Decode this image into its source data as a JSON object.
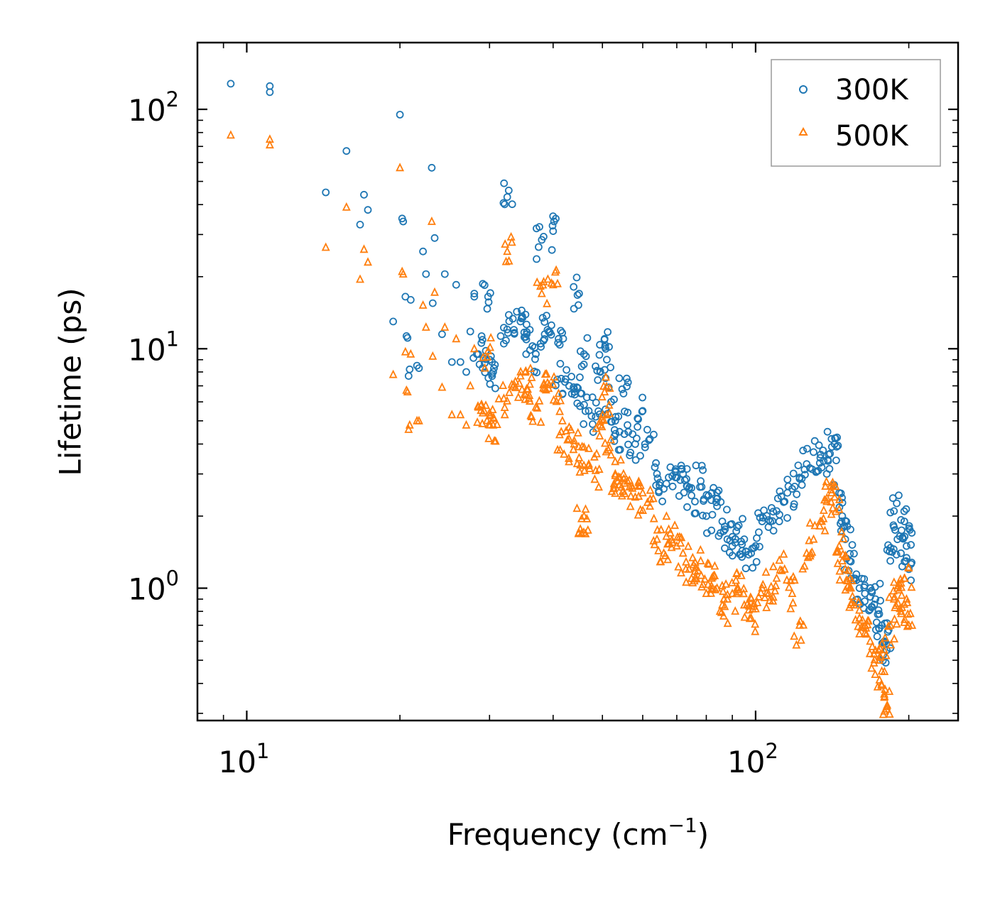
{
  "chart_data": {
    "type": "scatter",
    "title": "",
    "xlabel": "Frequency (cm",
    "xlabel_sup": "−1",
    "xlabel_close": ")",
    "ylabel": "Lifetime (ps)",
    "xscale": "log",
    "yscale": "log",
    "xlim": [
      8.0,
      250.0
    ],
    "ylim": [
      0.28,
      190.0
    ],
    "x_ticks": [
      {
        "value": 10,
        "base": "10",
        "exp": "1"
      },
      {
        "value": 100,
        "base": "10",
        "exp": "2"
      }
    ],
    "y_ticks": [
      {
        "value": 1,
        "base": "10",
        "exp": "0"
      },
      {
        "value": 10,
        "base": "10",
        "exp": "1"
      },
      {
        "value": 100,
        "base": "10",
        "exp": "2"
      }
    ],
    "legend_position": "top-right",
    "series": [
      {
        "name": "300K",
        "color": "#1f77b4",
        "marker": "circle",
        "points": [
          [
            9.3,
            128
          ],
          [
            11.1,
            125
          ],
          [
            11.1,
            118
          ],
          [
            14.3,
            45
          ],
          [
            15.7,
            67
          ],
          [
            16.7,
            33
          ],
          [
            17.0,
            44
          ],
          [
            17.3,
            38
          ],
          [
            19.4,
            13
          ],
          [
            20.0,
            95
          ],
          [
            20.2,
            35
          ],
          [
            20.3,
            34
          ],
          [
            20.5,
            16.5
          ],
          [
            20.6,
            11.3
          ],
          [
            20.7,
            11.1
          ],
          [
            20.8,
            7.7
          ],
          [
            20.9,
            8.2
          ],
          [
            21.0,
            16
          ],
          [
            21.6,
            8.5
          ],
          [
            21.8,
            8.3
          ],
          [
            22.2,
            25.5
          ],
          [
            22.5,
            20.5
          ],
          [
            23.1,
            57
          ],
          [
            23.2,
            15.5
          ],
          [
            23.4,
            29
          ],
          [
            24.2,
            11.5
          ],
          [
            24.5,
            20.5
          ],
          [
            25.3,
            8.8
          ],
          [
            25.8,
            18.5
          ],
          [
            26.3,
            8.8
          ],
          [
            27.0,
            8.0
          ],
          [
            27.5,
            11.8
          ],
          [
            28.0,
            17
          ],
          [
            28.0,
            16.5
          ],
          [
            28.5,
            9.5
          ],
          [
            29.5,
            9.8
          ],
          [
            29.8,
            16.5
          ],
          [
            30.0,
            9.0
          ],
          [
            30.5,
            8.0
          ],
          [
            32.0,
            10.5
          ],
          [
            32.5,
            43
          ],
          [
            33.5,
            12
          ],
          [
            34.5,
            13
          ],
          [
            35.5,
            11.5
          ],
          [
            36.0,
            12
          ],
          [
            37.0,
            9.5
          ],
          [
            38.0,
            28.5
          ],
          [
            38.5,
            11.5
          ],
          [
            39.0,
            12
          ],
          [
            40.0,
            31
          ],
          [
            41.0,
            11
          ],
          [
            41.5,
            7.5
          ],
          [
            43.0,
            7.0
          ],
          [
            44.0,
            6.8
          ],
          [
            45.0,
            17
          ],
          [
            45.5,
            6.5
          ],
          [
            46.0,
            9.5
          ],
          [
            47.0,
            5.5
          ],
          [
            48.5,
            5.2
          ],
          [
            49.5,
            8.0
          ],
          [
            50.5,
            11
          ],
          [
            51.0,
            9
          ],
          [
            52.0,
            6.0
          ],
          [
            53.0,
            5.0
          ],
          [
            54.0,
            4.5
          ],
          [
            55.0,
            6.5
          ],
          [
            56.0,
            4.8
          ],
          [
            58.0,
            4.0
          ],
          [
            60.0,
            5.5
          ],
          [
            62.0,
            4.2
          ],
          [
            64.0,
            3.0
          ],
          [
            66.0,
            2.6
          ],
          [
            68.0,
            3.2
          ],
          [
            70.0,
            2.9
          ],
          [
            72.0,
            3.0
          ],
          [
            74.0,
            2.6
          ],
          [
            76.0,
            2.3
          ],
          [
            78.0,
            2.8
          ],
          [
            80.0,
            2.0
          ],
          [
            82.0,
            2.5
          ],
          [
            84.0,
            2.2
          ],
          [
            86.0,
            1.9
          ],
          [
            88.0,
            1.6
          ],
          [
            90.0,
            1.5
          ],
          [
            92.0,
            1.8
          ],
          [
            95.0,
            1.6
          ],
          [
            98.0,
            1.4
          ],
          [
            100.0,
            1.5
          ],
          [
            103.0,
            1.9
          ],
          [
            106.0,
            1.8
          ],
          [
            110.0,
            2.1
          ],
          [
            114.0,
            2.3
          ],
          [
            118.0,
            2.6
          ],
          [
            122.0,
            2.9
          ],
          [
            126.0,
            3.3
          ],
          [
            130.0,
            3.7
          ],
          [
            134.0,
            3.5
          ],
          [
            138.0,
            3.0
          ],
          [
            141.0,
            4.2
          ],
          [
            143.0,
            4.0
          ],
          [
            146.0,
            2.5
          ],
          [
            148.0,
            2.0
          ],
          [
            150.0,
            1.6
          ],
          [
            153.0,
            1.3
          ],
          [
            156.0,
            1.1
          ],
          [
            160.0,
            1.0
          ],
          [
            164.0,
            0.95
          ],
          [
            168.0,
            0.92
          ],
          [
            172.0,
            0.9
          ],
          [
            175.0,
            0.78
          ],
          [
            177.0,
            0.7
          ],
          [
            179.0,
            0.6
          ],
          [
            181.0,
            0.55
          ],
          [
            184.0,
            1.3
          ],
          [
            187.0,
            2.1
          ],
          [
            190.0,
            1.6
          ],
          [
            193.0,
            1.4
          ],
          [
            196.0,
            1.9
          ],
          [
            198.0,
            1.5
          ],
          [
            200.0,
            1.2
          ]
        ]
      },
      {
        "name": "500K",
        "color": "#ff7f0e",
        "marker": "triangle",
        "points": [
          [
            9.3,
            78
          ],
          [
            11.1,
            75
          ],
          [
            11.1,
            71
          ],
          [
            14.3,
            26.5
          ],
          [
            15.7,
            39
          ],
          [
            16.7,
            19.5
          ],
          [
            17.0,
            26
          ],
          [
            17.3,
            23
          ],
          [
            19.4,
            7.8
          ],
          [
            20.0,
            57
          ],
          [
            20.2,
            21
          ],
          [
            20.3,
            20.5
          ],
          [
            20.5,
            9.7
          ],
          [
            20.6,
            6.7
          ],
          [
            20.7,
            6.6
          ],
          [
            20.8,
            4.6
          ],
          [
            20.9,
            4.8
          ],
          [
            21.0,
            9.5
          ],
          [
            21.6,
            5.0
          ],
          [
            21.8,
            5.0
          ],
          [
            22.2,
            15.2
          ],
          [
            22.5,
            12.3
          ],
          [
            23.1,
            34
          ],
          [
            23.2,
            9.3
          ],
          [
            23.4,
            17.2
          ],
          [
            24.2,
            6.9
          ],
          [
            24.5,
            12.3
          ],
          [
            25.3,
            5.3
          ],
          [
            25.8,
            11
          ],
          [
            26.3,
            5.3
          ],
          [
            27.0,
            4.8
          ],
          [
            27.5,
            7.0
          ],
          [
            28.0,
            10
          ],
          [
            28.5,
            5.7
          ],
          [
            29.5,
            5.8
          ],
          [
            29.8,
            9.8
          ],
          [
            30.0,
            5.4
          ],
          [
            30.5,
            4.8
          ],
          [
            32.0,
            6.2
          ],
          [
            32.5,
            25.5
          ],
          [
            33.5,
            7.1
          ],
          [
            34.5,
            7.7
          ],
          [
            35.5,
            6.8
          ],
          [
            36.0,
            7.1
          ],
          [
            37.0,
            5.7
          ],
          [
            38.0,
            17
          ],
          [
            38.5,
            6.8
          ],
          [
            39.0,
            7.2
          ],
          [
            40.0,
            18.5
          ],
          [
            41.0,
            6.5
          ],
          [
            41.5,
            4.5
          ],
          [
            43.0,
            4.2
          ],
          [
            44.0,
            4.0
          ],
          [
            45.0,
            3.5
          ],
          [
            45.5,
            1.95
          ],
          [
            46.0,
            2.0
          ],
          [
            47.0,
            3.3
          ],
          [
            48.5,
            3.1
          ],
          [
            49.5,
            4.8
          ],
          [
            50.5,
            6.6
          ],
          [
            51.0,
            5.3
          ],
          [
            52.0,
            3.6
          ],
          [
            53.0,
            3.0
          ],
          [
            54.0,
            2.7
          ],
          [
            55.0,
            3.0
          ],
          [
            56.0,
            2.8
          ],
          [
            58.0,
            2.4
          ],
          [
            60.0,
            2.5
          ],
          [
            62.0,
            2.2
          ],
          [
            64.0,
            1.6
          ],
          [
            66.0,
            1.4
          ],
          [
            68.0,
            1.7
          ],
          [
            70.0,
            1.5
          ],
          [
            72.0,
            1.4
          ],
          [
            74.0,
            1.2
          ],
          [
            76.0,
            1.1
          ],
          [
            78.0,
            1.3
          ],
          [
            80.0,
            0.95
          ],
          [
            82.0,
            1.1
          ],
          [
            84.0,
            1.0
          ],
          [
            86.0,
            0.85
          ],
          [
            88.0,
            0.9
          ],
          [
            90.0,
            0.95
          ],
          [
            92.0,
            1.0
          ],
          [
            95.0,
            0.85
          ],
          [
            98.0,
            0.75
          ],
          [
            100.0,
            0.82
          ],
          [
            103.0,
            1.0
          ],
          [
            106.0,
            0.95
          ],
          [
            110.0,
            1.1
          ],
          [
            114.0,
            1.2
          ],
          [
            118.0,
            0.95
          ],
          [
            122.0,
            0.7
          ],
          [
            126.0,
            1.4
          ],
          [
            130.0,
            1.6
          ],
          [
            134.0,
            1.9
          ],
          [
            138.0,
            2.3
          ],
          [
            141.0,
            2.5
          ],
          [
            143.0,
            2.4
          ],
          [
            146.0,
            1.5
          ],
          [
            148.0,
            1.3
          ],
          [
            150.0,
            1.2
          ],
          [
            153.0,
            1.0
          ],
          [
            156.0,
            0.85
          ],
          [
            160.0,
            0.75
          ],
          [
            164.0,
            0.65
          ],
          [
            168.0,
            0.6
          ],
          [
            172.0,
            0.55
          ],
          [
            175.0,
            0.5
          ],
          [
            177.0,
            0.45
          ],
          [
            179.0,
            0.35
          ],
          [
            181.0,
            0.32
          ],
          [
            184.0,
            0.7
          ],
          [
            187.0,
            0.9
          ],
          [
            190.0,
            1.0
          ],
          [
            193.0,
            0.8
          ],
          [
            196.0,
            1.1
          ],
          [
            198.0,
            0.9
          ],
          [
            200.0,
            0.7
          ]
        ]
      }
    ]
  }
}
